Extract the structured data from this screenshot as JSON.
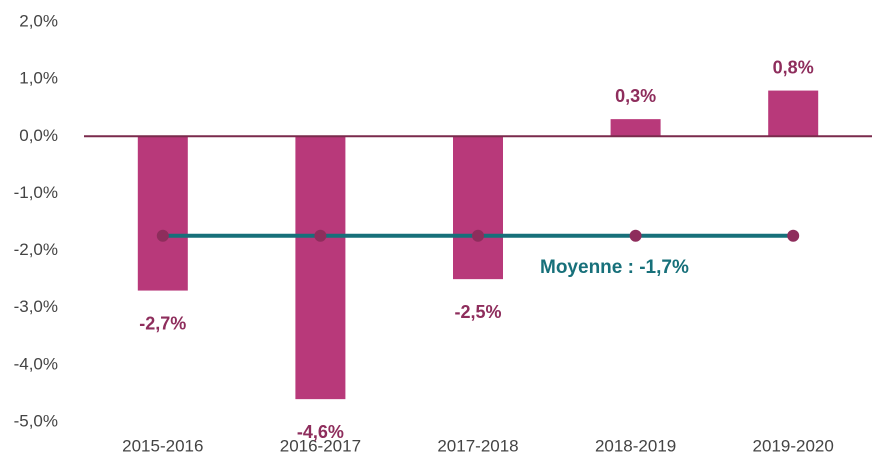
{
  "chart_data": {
    "type": "bar",
    "categories": [
      "2015-2016",
      "2016-2017",
      "2017-2018",
      "2018-2019",
      "2019-2020"
    ],
    "values": [
      -2.7,
      -4.6,
      -2.5,
      0.3,
      0.8
    ],
    "value_labels": [
      "-2,7%",
      "-4,6%",
      "-2,5%",
      "0,3%",
      "0,8%"
    ],
    "color": "#b8397a",
    "label_color": "#8e2d5c",
    "ylim": [
      -5,
      2
    ],
    "yticks": [
      {
        "value": 2,
        "label": "2,0%"
      },
      {
        "value": 1,
        "label": "1,0%"
      },
      {
        "value": 0,
        "label": "0,0%"
      },
      {
        "value": -1,
        "label": "-1,0%"
      },
      {
        "value": -2,
        "label": "-2,0%"
      },
      {
        "value": -3,
        "label": "-3,0%"
      },
      {
        "value": -4,
        "label": "-4,0%"
      },
      {
        "value": -5,
        "label": "-5,0%"
      }
    ],
    "average": {
      "values": [
        -1.74,
        -1.74,
        -1.74,
        -1.74,
        -1.74
      ],
      "color": "#17707a",
      "marker_color": "#8e2d5c",
      "annotation": "Moyenne : -1,7%"
    }
  }
}
